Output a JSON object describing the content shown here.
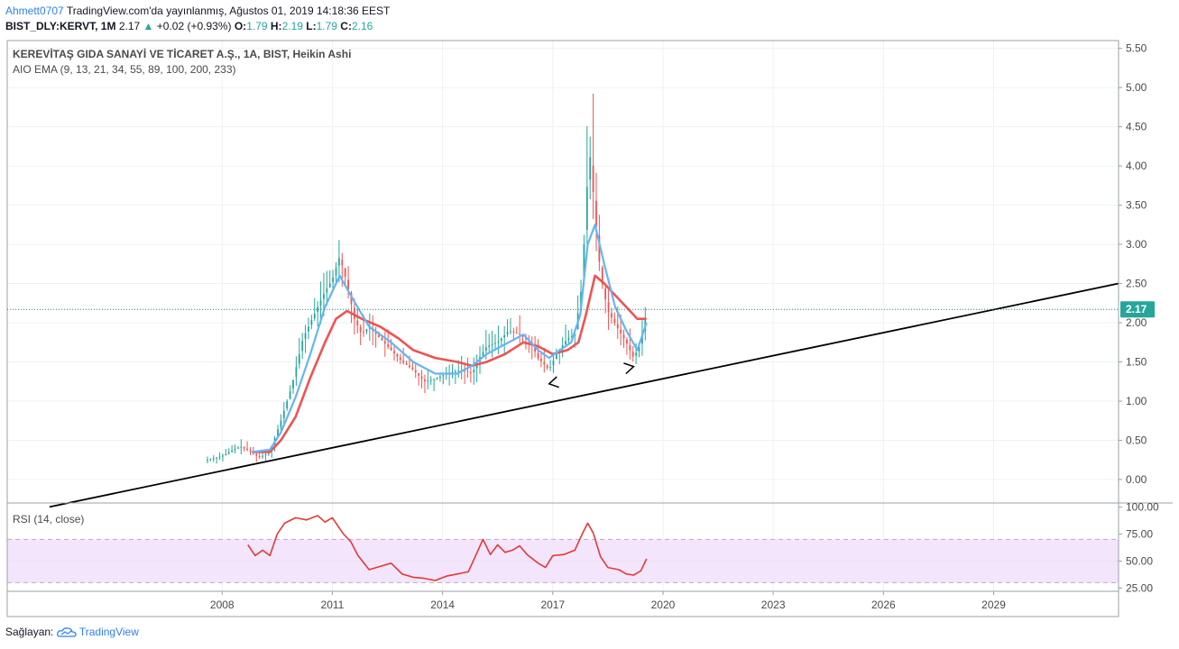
{
  "header": {
    "user": "Ahmett0707",
    "published": "TradingView.com'da yayınlanmış, Ağustos 01, 2019 14:18:36 EEST",
    "symbol": "BIST_DLY:KERVT, 1M",
    "last": "2.17",
    "change": "+0.02 (+0.93%)",
    "o_label": "O:",
    "o": "1.79",
    "h_label": "H:",
    "h": "2.19",
    "l_label": "L:",
    "l": "1.79",
    "c_label": "C:",
    "c": "2.16"
  },
  "footer": {
    "label": "Sağlayan:",
    "brand": "TradingView"
  },
  "colors": {
    "up": "#26a69a",
    "down": "#ef5350",
    "ema_fast": "#64b5f6",
    "ema_slow": "#ef5350",
    "rsi": "#e53935",
    "rsi_band": "#f3e5fb",
    "price_line": "#2a7f8c",
    "trend": "#000000"
  },
  "chart_data": [
    {
      "type": "candlestick",
      "title": "KEREVİTAŞ GIDA SANAYİ VE TİCARET A.Ş., 1A, BIST, Heikin Ashi",
      "indicator": "AIO EMA (9, 13, 21, 34, 55, 89, 100, 200, 233)",
      "ylim": [
        -0.3,
        5.6
      ],
      "y_ticks": [
        "0.00",
        "0.50",
        "1.00",
        "1.50",
        "2.00",
        "2.50",
        "3.00",
        "3.50",
        "4.00",
        "4.50",
        "5.00",
        "5.50"
      ],
      "x_ticks": [
        "2008",
        "2011",
        "2014",
        "2017",
        "2020",
        "2023",
        "2026",
        "2029"
      ],
      "x_tick_years": [
        2008,
        2011,
        2014,
        2017,
        2020,
        2023,
        2026,
        2029
      ],
      "xlim": [
        2002.15,
        2032.4
      ],
      "last_price": 2.17,
      "last_price_label": "2.17",
      "close_anchors": [
        [
          2007.6,
          0.25
        ],
        [
          2008.0,
          0.3
        ],
        [
          2008.3,
          0.38
        ],
        [
          2008.5,
          0.42
        ],
        [
          2008.8,
          0.35
        ],
        [
          2009.0,
          0.28
        ],
        [
          2009.3,
          0.35
        ],
        [
          2009.6,
          0.75
        ],
        [
          2009.9,
          1.2
        ],
        [
          2010.2,
          1.8
        ],
        [
          2010.4,
          2.0
        ],
        [
          2010.6,
          2.2
        ],
        [
          2010.8,
          2.4
        ],
        [
          2011.0,
          2.55
        ],
        [
          2011.2,
          2.85
        ],
        [
          2011.4,
          2.5
        ],
        [
          2011.6,
          2.05
        ],
        [
          2011.8,
          1.85
        ],
        [
          2012.0,
          1.95
        ],
        [
          2012.3,
          1.8
        ],
        [
          2012.6,
          1.65
        ],
        [
          2012.9,
          1.5
        ],
        [
          2013.2,
          1.4
        ],
        [
          2013.5,
          1.25
        ],
        [
          2013.8,
          1.28
        ],
        [
          2014.1,
          1.35
        ],
        [
          2014.5,
          1.4
        ],
        [
          2014.8,
          1.35
        ],
        [
          2015.0,
          1.55
        ],
        [
          2015.2,
          1.7
        ],
        [
          2015.5,
          1.75
        ],
        [
          2015.8,
          1.9
        ],
        [
          2016.1,
          1.85
        ],
        [
          2016.4,
          1.75
        ],
        [
          2016.6,
          1.55
        ],
        [
          2016.9,
          1.4
        ],
        [
          2017.1,
          1.6
        ],
        [
          2017.4,
          1.8
        ],
        [
          2017.6,
          1.85
        ],
        [
          2017.8,
          2.5
        ],
        [
          2017.9,
          3.5
        ],
        [
          2018.0,
          4.2
        ],
        [
          2018.15,
          3.4
        ],
        [
          2018.3,
          2.6
        ],
        [
          2018.5,
          2.15
        ],
        [
          2018.8,
          1.9
        ],
        [
          2019.0,
          1.75
        ],
        [
          2019.2,
          1.55
        ],
        [
          2019.4,
          1.75
        ],
        [
          2019.55,
          2.15
        ]
      ],
      "ema_fast_anchors": [
        [
          2008.8,
          0.35
        ],
        [
          2009.3,
          0.38
        ],
        [
          2009.6,
          0.6
        ],
        [
          2010.0,
          1.05
        ],
        [
          2010.4,
          1.6
        ],
        [
          2010.8,
          2.2
        ],
        [
          2011.2,
          2.6
        ],
        [
          2011.5,
          2.35
        ],
        [
          2012.0,
          1.95
        ],
        [
          2012.6,
          1.75
        ],
        [
          2013.2,
          1.5
        ],
        [
          2013.8,
          1.35
        ],
        [
          2014.4,
          1.35
        ],
        [
          2014.8,
          1.45
        ],
        [
          2015.2,
          1.6
        ],
        [
          2015.8,
          1.75
        ],
        [
          2016.2,
          1.85
        ],
        [
          2016.6,
          1.65
        ],
        [
          2016.9,
          1.55
        ],
        [
          2017.2,
          1.65
        ],
        [
          2017.5,
          1.75
        ],
        [
          2017.75,
          2.1
        ],
        [
          2017.95,
          3.0
        ],
        [
          2018.15,
          3.25
        ],
        [
          2018.4,
          2.75
        ],
        [
          2018.7,
          2.2
        ],
        [
          2019.0,
          1.9
        ],
        [
          2019.3,
          1.65
        ],
        [
          2019.55,
          2.0
        ]
      ],
      "ema_slow_anchors": [
        [
          2008.8,
          0.35
        ],
        [
          2009.3,
          0.35
        ],
        [
          2009.6,
          0.5
        ],
        [
          2010.0,
          0.8
        ],
        [
          2010.4,
          1.3
        ],
        [
          2010.8,
          1.75
        ],
        [
          2011.1,
          2.05
        ],
        [
          2011.4,
          2.15
        ],
        [
          2011.8,
          2.05
        ],
        [
          2012.3,
          1.95
        ],
        [
          2012.8,
          1.8
        ],
        [
          2013.2,
          1.65
        ],
        [
          2013.8,
          1.55
        ],
        [
          2014.4,
          1.5
        ],
        [
          2014.8,
          1.45
        ],
        [
          2015.2,
          1.5
        ],
        [
          2015.7,
          1.6
        ],
        [
          2016.2,
          1.75
        ],
        [
          2016.6,
          1.7
        ],
        [
          2017.0,
          1.6
        ],
        [
          2017.4,
          1.65
        ],
        [
          2017.7,
          1.75
        ],
        [
          2017.9,
          2.1
        ],
        [
          2018.15,
          2.6
        ],
        [
          2018.4,
          2.5
        ],
        [
          2018.7,
          2.35
        ],
        [
          2019.0,
          2.2
        ],
        [
          2019.3,
          2.05
        ],
        [
          2019.55,
          2.05
        ]
      ],
      "trendline": {
        "start": [
          2003.3,
          -0.35
        ],
        "end": [
          2032.4,
          2.5
        ]
      },
      "arrows": [
        {
          "at": [
            2016.9,
            1.22
          ],
          "direction": "left"
        },
        {
          "at": [
            2019.2,
            1.44
          ],
          "direction": "right"
        }
      ]
    },
    {
      "type": "line",
      "title": "RSI (14, close)",
      "ylim": [
        22,
        102
      ],
      "y_ticks": [
        "25.00",
        "50.00",
        "75.00",
        "100.00"
      ],
      "band": [
        30,
        70
      ],
      "anchors": [
        [
          2008.7,
          65
        ],
        [
          2008.9,
          55
        ],
        [
          2009.1,
          60
        ],
        [
          2009.3,
          55
        ],
        [
          2009.5,
          75
        ],
        [
          2009.7,
          85
        ],
        [
          2010.0,
          90
        ],
        [
          2010.3,
          88
        ],
        [
          2010.6,
          92
        ],
        [
          2010.8,
          86
        ],
        [
          2011.0,
          90
        ],
        [
          2011.3,
          75
        ],
        [
          2011.5,
          68
        ],
        [
          2011.7,
          55
        ],
        [
          2012.0,
          42
        ],
        [
          2012.3,
          45
        ],
        [
          2012.6,
          48
        ],
        [
          2012.9,
          38
        ],
        [
          2013.2,
          35
        ],
        [
          2013.5,
          34
        ],
        [
          2013.8,
          32
        ],
        [
          2014.1,
          36
        ],
        [
          2014.4,
          38
        ],
        [
          2014.7,
          40
        ],
        [
          2014.9,
          55
        ],
        [
          2015.1,
          70
        ],
        [
          2015.3,
          56
        ],
        [
          2015.5,
          65
        ],
        [
          2015.7,
          58
        ],
        [
          2015.9,
          60
        ],
        [
          2016.1,
          64
        ],
        [
          2016.3,
          56
        ],
        [
          2016.6,
          48
        ],
        [
          2016.8,
          44
        ],
        [
          2017.0,
          55
        ],
        [
          2017.3,
          56
        ],
        [
          2017.6,
          60
        ],
        [
          2017.8,
          75
        ],
        [
          2017.95,
          85
        ],
        [
          2018.1,
          76
        ],
        [
          2018.3,
          54
        ],
        [
          2018.5,
          44
        ],
        [
          2018.8,
          42
        ],
        [
          2019.0,
          38
        ],
        [
          2019.2,
          37
        ],
        [
          2019.4,
          41
        ],
        [
          2019.55,
          52
        ]
      ]
    }
  ]
}
